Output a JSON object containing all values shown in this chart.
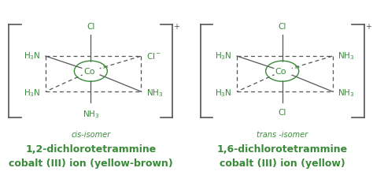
{
  "bg_color": "#ffffff",
  "green_color": "#3a8a3a",
  "line_color": "#555555",
  "title1": "1,2-dichlorotetrammine",
  "title1b": "cobalt (III) ion (yellow-brown)",
  "title2": "1,6-dichlorotetrammine",
  "title2b": "cobalt (III) ion (yellow)",
  "subtitle1": "cis-isomer",
  "subtitle2": "trans -isomer",
  "title_fontsize": 9.0,
  "subtitle_fontsize": 7.0,
  "label_fontsize": 7.5,
  "co_fontsize": 8.0
}
